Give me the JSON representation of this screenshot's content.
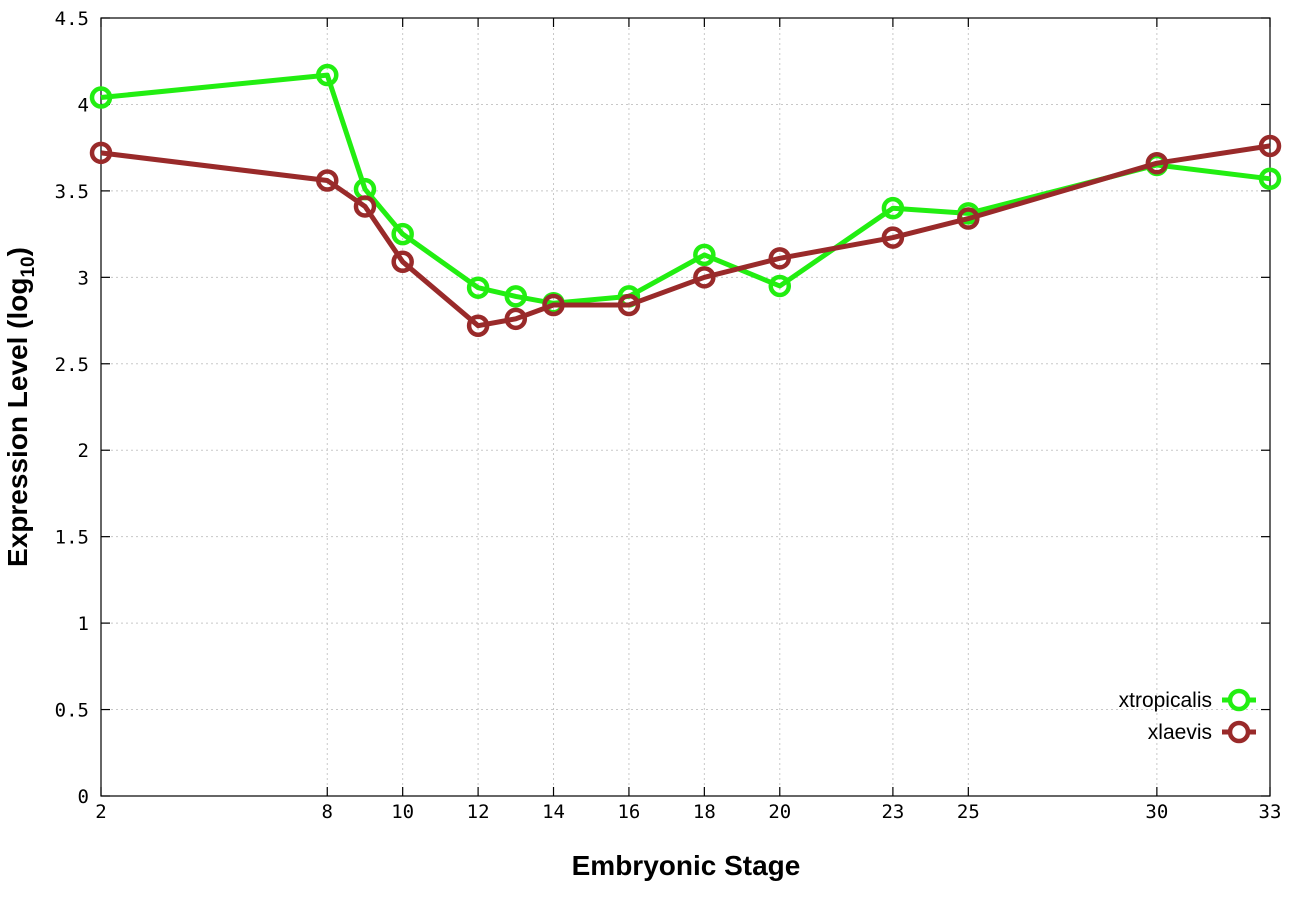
{
  "chart_data": {
    "type": "line",
    "title": "",
    "xlabel": "Embryonic Stage",
    "ylabel_main": "Expression Level (log",
    "ylabel_sub": "10",
    "ylabel_close": ")",
    "xlim": [
      2,
      33
    ],
    "ylim": [
      0,
      4.5
    ],
    "x_ticks": [
      2,
      8,
      10,
      12,
      14,
      16,
      18,
      20,
      23,
      25,
      30,
      33
    ],
    "x_tick_labels": [
      "2",
      "8",
      "10",
      "12",
      "14",
      "16",
      "18",
      "20",
      "23",
      "25",
      "30",
      "33"
    ],
    "y_ticks": [
      0,
      0.5,
      1,
      1.5,
      2,
      2.5,
      3,
      3.5,
      4,
      4.5
    ],
    "y_tick_labels": [
      "0",
      "0.5",
      "1",
      "1.5",
      "2",
      "2.5",
      "3",
      "3.5",
      "4",
      "4.5"
    ],
    "grid": true,
    "legend_position": "bottom-right",
    "x": [
      2,
      8,
      9,
      10,
      12,
      13,
      14,
      16,
      18,
      20,
      23,
      25,
      30,
      33
    ],
    "series": [
      {
        "name": "xtropicalis",
        "color": "#22ee11",
        "values": [
          4.04,
          4.17,
          3.51,
          3.25,
          2.94,
          2.89,
          2.85,
          2.89,
          3.13,
          2.95,
          3.4,
          3.37,
          3.65,
          3.57
        ]
      },
      {
        "name": "xlaevis",
        "color": "#992a2a",
        "values": [
          3.72,
          3.56,
          3.41,
          3.09,
          2.72,
          2.76,
          2.84,
          2.84,
          3.0,
          3.11,
          3.23,
          3.34,
          3.66,
          3.76
        ]
      }
    ]
  }
}
